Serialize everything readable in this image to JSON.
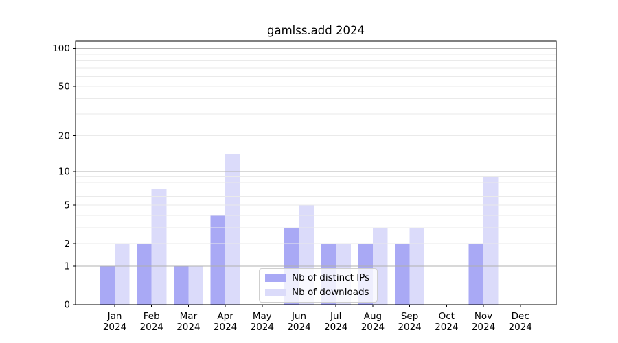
{
  "chart_data": {
    "type": "bar",
    "title": "gamlss.add 2024",
    "categories": [
      "Jan",
      "Feb",
      "Mar",
      "Apr",
      "May",
      "Jun",
      "Jul",
      "Aug",
      "Sep",
      "Oct",
      "Nov",
      "Dec"
    ],
    "x_sublabel": "2024",
    "series": [
      {
        "name": "Nb of distinct IPs",
        "color": "#a9a9f5",
        "values": [
          1,
          2,
          1,
          4,
          0,
          3,
          2,
          2,
          2,
          0,
          2,
          0
        ]
      },
      {
        "name": "Nb of downloads",
        "color": "#dbdbfa",
        "values": [
          2,
          7,
          1,
          14,
          0,
          5,
          2,
          3,
          3,
          0,
          9,
          0
        ]
      }
    ],
    "y_axis": {
      "scale": "log1p",
      "tick_values": [
        0,
        1,
        2,
        5,
        10,
        20,
        50,
        100
      ],
      "ylim": [
        0,
        114
      ]
    },
    "gridlines": {
      "major_values": [
        1,
        10,
        100
      ],
      "minor_values": [
        2,
        3,
        4,
        5,
        6,
        7,
        8,
        9,
        20,
        30,
        40,
        50,
        60,
        70,
        80,
        90
      ],
      "major_color": "#b0b0b0",
      "minor_color": "#eaeaea"
    },
    "legend": {
      "position": "lower center"
    },
    "colors": {
      "axis": "#000000",
      "text": "#000000",
      "background": "#ffffff"
    }
  }
}
